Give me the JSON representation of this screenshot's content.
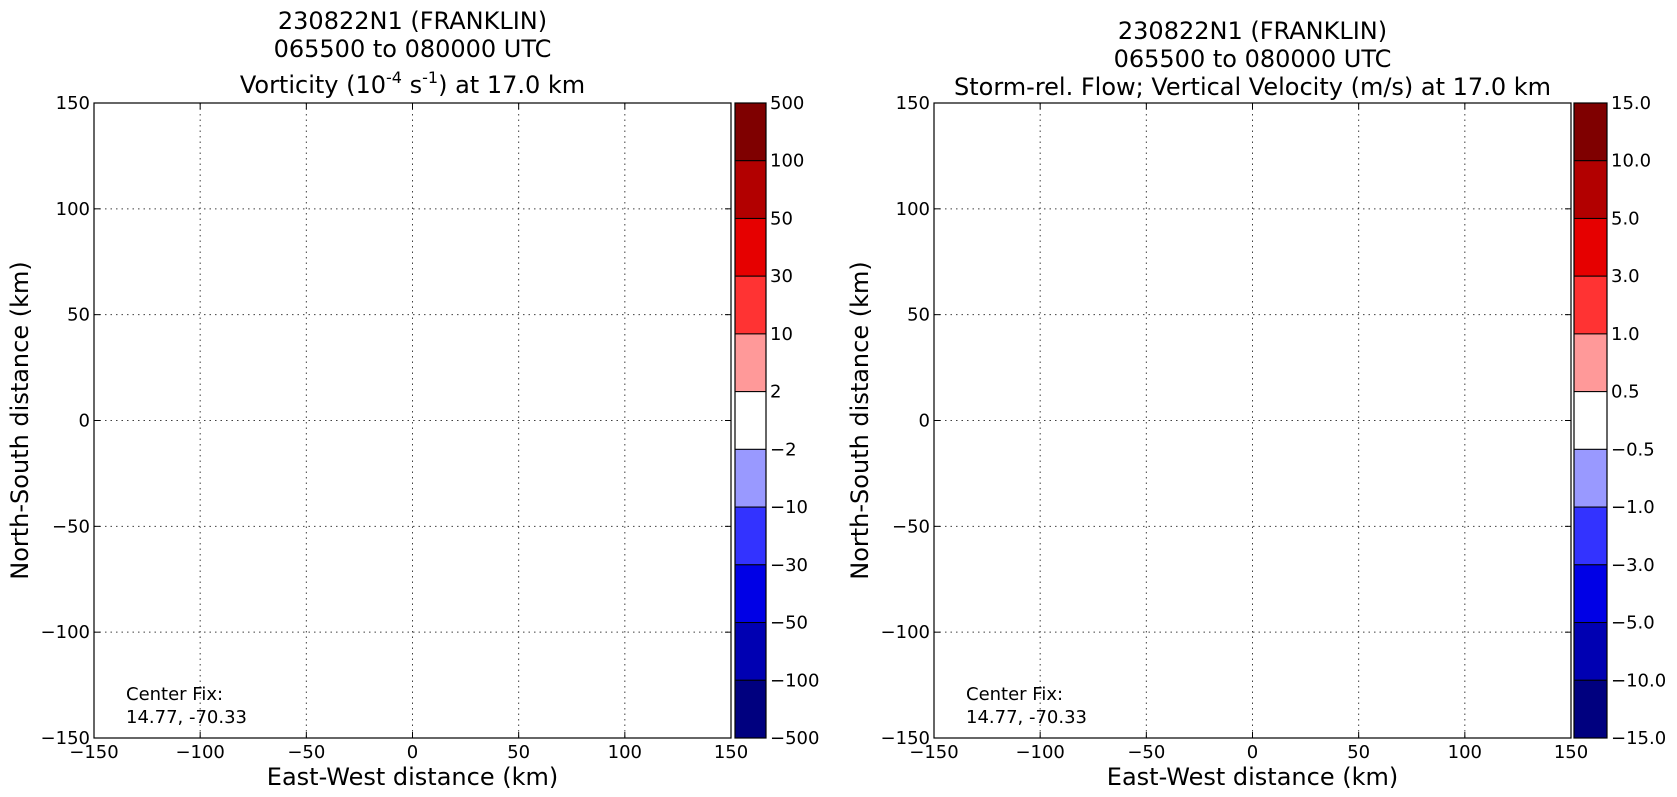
{
  "chart_data": [
    {
      "type": "heatmap",
      "title_lines": [
        "230822N1 (FRANKLIN)",
        "065500 to 080000 UTC"
      ],
      "title_field_parts": [
        "Vorticity (10",
        "-4",
        " s",
        "-1",
        ") at 17.0 km"
      ],
      "xlabel": "East-West distance (km)",
      "ylabel": "North-South distance (km)",
      "xlim": [
        -150,
        150
      ],
      "ylim": [
        -150,
        150
      ],
      "x_ticks": [
        "−150",
        "−100",
        "−50",
        "0",
        "50",
        "100",
        "150"
      ],
      "y_ticks": [
        "150",
        "100",
        "50",
        "0",
        "−50",
        "−100",
        "−150"
      ],
      "grid": true,
      "data": [],
      "annotation_lines": [
        "Center Fix:",
        "14.77, -70.33"
      ],
      "colorbar_labels": [
        "500",
        "100",
        "50",
        "30",
        "10",
        "2",
        "−2",
        "−10",
        "−30",
        "−50",
        "−100",
        "−500"
      ],
      "colorbar_colors": [
        "#7f0000",
        "#b20000",
        "#e60000",
        "#ff3333",
        "#ff9999",
        "#ffffff",
        "#9999ff",
        "#3333ff",
        "#0000e6",
        "#0000b2",
        "#00007f"
      ]
    },
    {
      "type": "heatmap",
      "title_lines": [
        "230822N1 (FRANKLIN)",
        "065500 to 080000 UTC"
      ],
      "title_field_parts": [
        "Storm-rel. Flow; Vertical Velocity (m/s) at 17.0 km"
      ],
      "xlabel": "East-West distance (km)",
      "ylabel": "North-South distance (km)",
      "xlim": [
        -150,
        150
      ],
      "ylim": [
        -150,
        150
      ],
      "x_ticks": [
        "−150",
        "−100",
        "−50",
        "0",
        "50",
        "100",
        "150"
      ],
      "y_ticks": [
        "150",
        "100",
        "50",
        "0",
        "−50",
        "−100",
        "−150"
      ],
      "grid": true,
      "data": [],
      "annotation_lines": [
        "Center Fix:",
        "14.77, -70.33"
      ],
      "colorbar_labels": [
        "15.0",
        "10.0",
        "5.0",
        "3.0",
        "1.0",
        "0.5",
        "−0.5",
        "−1.0",
        "−3.0",
        "−5.0",
        "−10.0",
        "−15.0"
      ],
      "colorbar_colors": [
        "#7f0000",
        "#b20000",
        "#e60000",
        "#ff3333",
        "#ff9999",
        "#ffffff",
        "#9999ff",
        "#3333ff",
        "#0000e6",
        "#0000b2",
        "#00007f"
      ]
    }
  ]
}
